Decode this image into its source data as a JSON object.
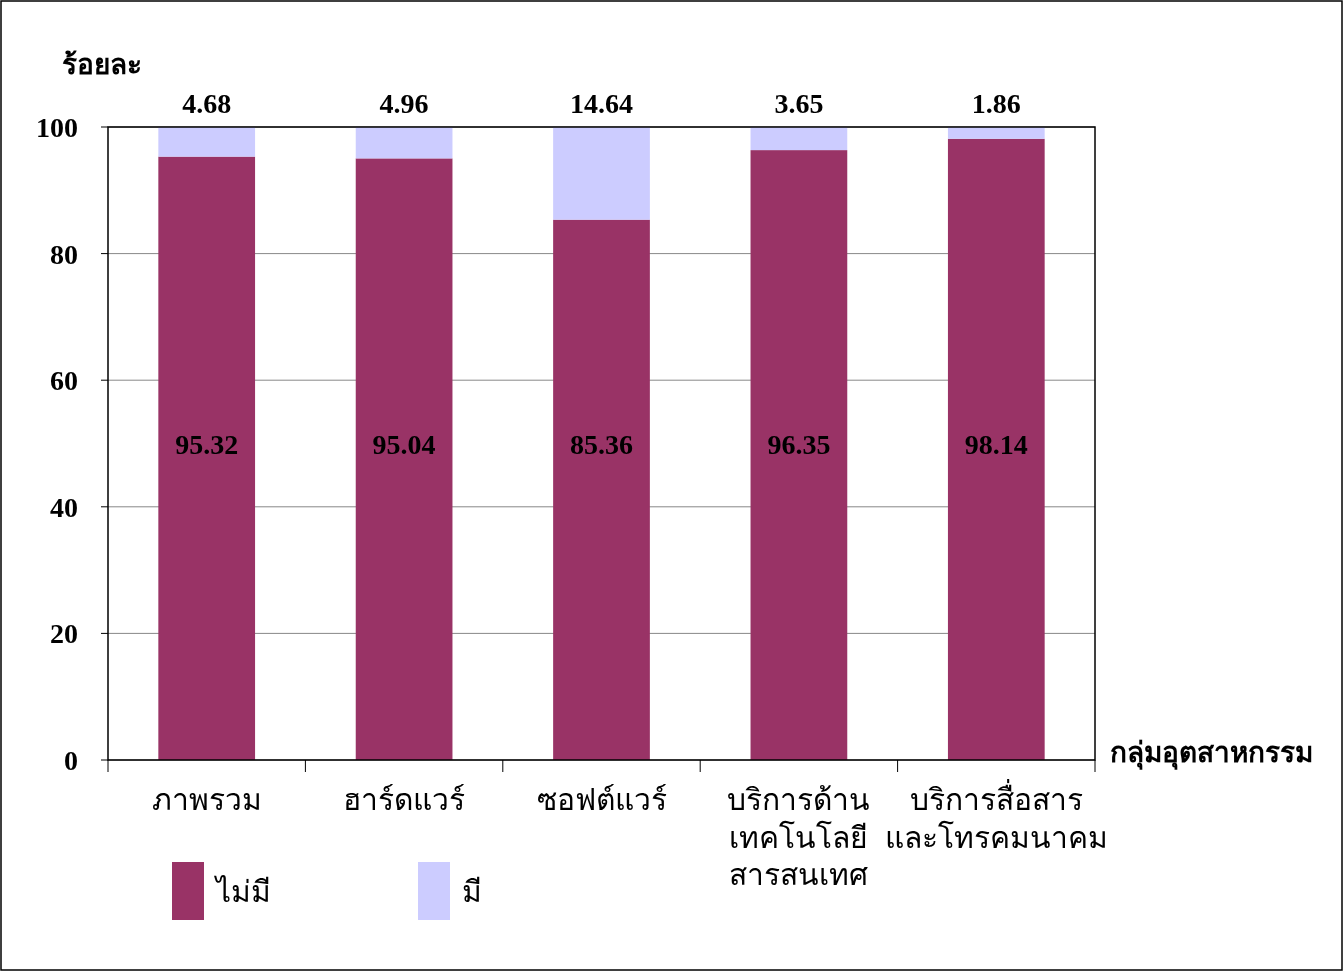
{
  "chart_data": {
    "type": "bar",
    "stacked": true,
    "ylabel": "ร้อยละ",
    "xlabel": "กลุ่มอุตสาหกรรม",
    "categories": [
      "ภาพรวม",
      "ฮาร์ดแวร์",
      "ซอฟต์แวร์",
      "บริการด้าน\nเทคโนโลยี\nสารสนเทศ",
      "บริการสื่อสาร\nและโทรคมนาคม"
    ],
    "series": [
      {
        "name": "ไม่มี",
        "color": "#993366",
        "values": [
          95.32,
          95.04,
          85.36,
          96.35,
          98.14
        ]
      },
      {
        "name": "มี",
        "color": "#ccccff",
        "values": [
          4.68,
          4.96,
          14.64,
          3.65,
          1.86
        ]
      }
    ],
    "ylim": [
      0,
      100
    ],
    "yticks": [
      0,
      20,
      40,
      60,
      80,
      100
    ],
    "grid": "y",
    "legend": "bottom",
    "data_labels": true
  }
}
